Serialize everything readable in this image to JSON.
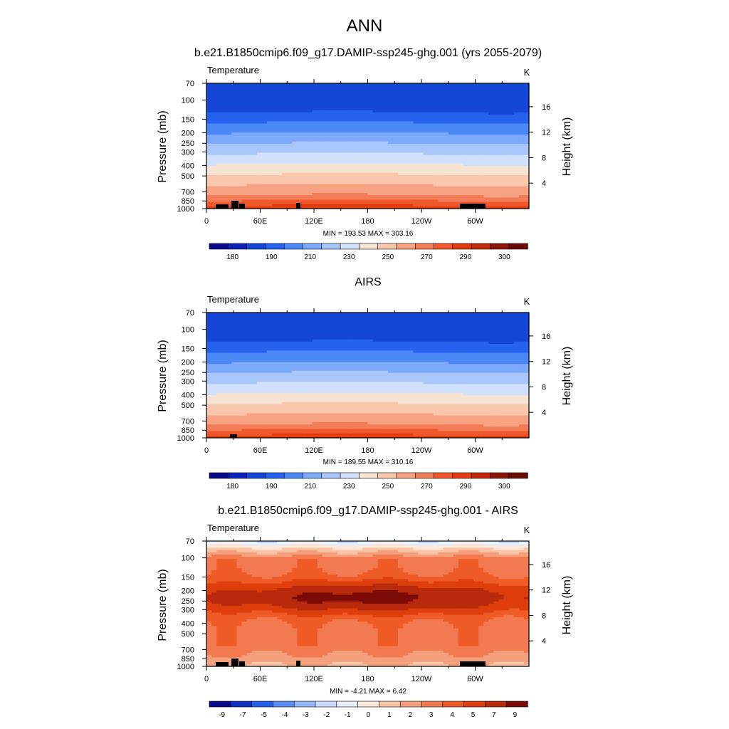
{
  "main_title": "ANN",
  "colors": {
    "temp_palette": [
      "#08088a",
      "#0b23b8",
      "#1446d8",
      "#2563ef",
      "#4a88f7",
      "#7ca9f9",
      "#a9c6fb",
      "#d1e1fb",
      "#f6e3d2",
      "#f9c7ab",
      "#f7a383",
      "#f47d59",
      "#f2582d",
      "#e23d11",
      "#bf2a0b",
      "#8e1609",
      "#6e0a06"
    ],
    "diff_palette": [
      "#08088a",
      "#1230c4",
      "#2460ea",
      "#5a8df6",
      "#94b6fa",
      "#c8d9fb",
      "#e6eefb",
      "#fde7d8",
      "#f9c3a5",
      "#f5a07c",
      "#f37a50",
      "#ef5b26",
      "#de3e0c",
      "#b92a0c",
      "#7c0b07"
    ],
    "land_mask": "#000000"
  },
  "chart_data": [
    {
      "type": "heatmap",
      "title": "b.e21.B1850cmip6.f09_g17.DAMIP-ssp245-ghg.001 (yrs 2055-2079)",
      "variable": "Temperature",
      "units": "K",
      "ylabel": "Pressure (mb)",
      "ylabel_right": "Height (km)",
      "x_ticks": [
        "0",
        "60E",
        "120E",
        "180",
        "120W",
        "60W"
      ],
      "y_ticks": [
        "70",
        "100",
        "150",
        "200",
        "250",
        "300",
        "400",
        "500",
        "700",
        "850",
        "1000"
      ],
      "y_right_ticks": [
        "16",
        "12",
        "8",
        "4"
      ],
      "stats": "MIN = 193.53  MAX = 303.16",
      "colorbar_labels": [
        "180",
        "190",
        "210",
        "230",
        "250",
        "270",
        "290",
        "300"
      ],
      "field": {
        "kind": "temp",
        "levels": [
          185,
          190,
          200,
          210,
          220,
          230,
          240,
          250,
          260,
          270,
          280,
          285,
          290,
          295,
          300,
          305
        ],
        "min": 193.53,
        "max": 303.16
      }
    },
    {
      "type": "heatmap",
      "title": "AIRS",
      "variable": "Temperature",
      "units": "K",
      "ylabel": "Pressure (mb)",
      "ylabel_right": "Height (km)",
      "x_ticks": [
        "0",
        "60E",
        "120E",
        "180",
        "120W",
        "60W"
      ],
      "y_ticks": [
        "70",
        "100",
        "150",
        "200",
        "250",
        "300",
        "400",
        "500",
        "700",
        "850",
        "1000"
      ],
      "y_right_ticks": [
        "16",
        "12",
        "8",
        "4"
      ],
      "stats": "MIN = 189.55  MAX = 310.16",
      "colorbar_labels": [
        "180",
        "190",
        "210",
        "230",
        "250",
        "270",
        "290",
        "300"
      ],
      "field": {
        "kind": "temp",
        "levels": [
          185,
          190,
          200,
          210,
          220,
          230,
          240,
          250,
          260,
          270,
          280,
          285,
          290,
          295,
          300,
          305
        ],
        "min": 189.55,
        "max": 310.16
      }
    },
    {
      "type": "heatmap",
      "title": "b.e21.B1850cmip6.f09_g17.DAMIP-ssp245-ghg.001 - AIRS",
      "variable": "Temperature",
      "units": "K",
      "ylabel": "Pressure (mb)",
      "ylabel_right": "Height (km)",
      "x_ticks": [
        "0",
        "60E",
        "120E",
        "180",
        "120W",
        "60W"
      ],
      "y_ticks": [
        "70",
        "100",
        "150",
        "200",
        "250",
        "300",
        "400",
        "500",
        "700",
        "850",
        "1000"
      ],
      "y_right_ticks": [
        "16",
        "12",
        "8",
        "4"
      ],
      "stats": "MIN =  -4.21  MAX =   6.42",
      "colorbar_labels": [
        "-9",
        "-7",
        "-5",
        "-4",
        "-3",
        "-2",
        "-1",
        "0",
        "1",
        "2",
        "3",
        "4",
        "5",
        "7",
        "9"
      ],
      "field": {
        "kind": "diff",
        "levels": [
          -8,
          -6,
          -4.5,
          -3.5,
          -2.5,
          -1.5,
          -0.5,
          0.5,
          1.5,
          2.5,
          3.5,
          4.5,
          6,
          8
        ],
        "min": -4.21,
        "max": 6.42
      }
    }
  ]
}
